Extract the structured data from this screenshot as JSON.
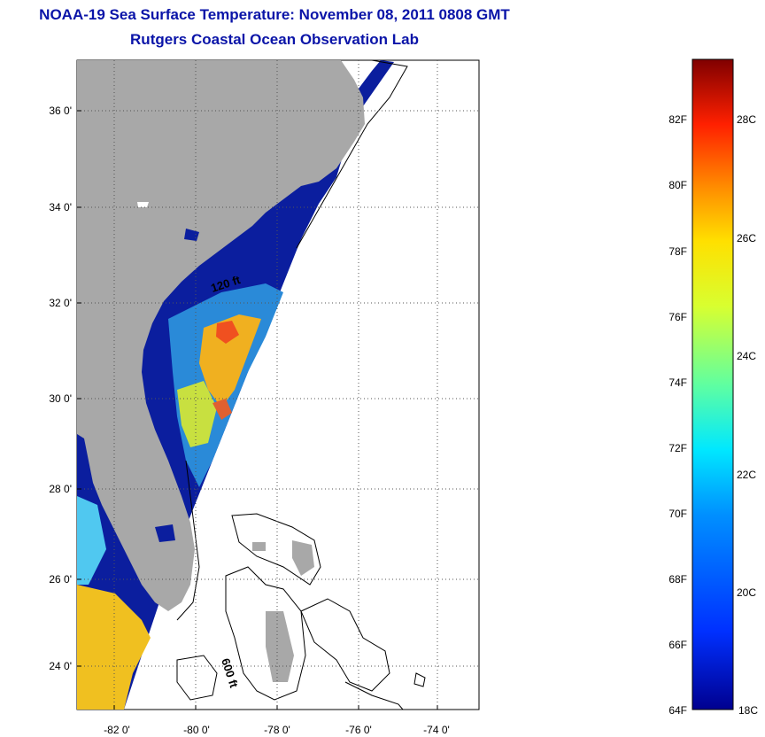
{
  "title": {
    "line1": "NOAA-19 Sea Surface Temperature:  November 08, 2011 0808 GMT",
    "line2": "Rutgers Coastal Ocean Observation Lab"
  },
  "axes": {
    "lat_ticks": [
      "36 0'",
      "34 0'",
      "32 0'",
      "30 0'",
      "28 0'",
      "26 0'",
      "24 0'"
    ],
    "lon_ticks": [
      "-82 0'",
      "-80 0'",
      "-78 0'",
      "-76 0'",
      "-74 0'"
    ]
  },
  "contour_labels": [
    "120 ft",
    "600 ft"
  ],
  "colorbar": {
    "fahrenheit_labels": [
      "82F",
      "80F",
      "78F",
      "76F",
      "74F",
      "72F",
      "70F",
      "68F",
      "66F",
      "64F"
    ],
    "celsius_labels": [
      "28C",
      "26C",
      "24C",
      "22C",
      "20C",
      "18C"
    ]
  },
  "colors": {
    "title": "#0a14a8",
    "land": "#a8a8a8",
    "cold_water": "#0a1a9a"
  }
}
